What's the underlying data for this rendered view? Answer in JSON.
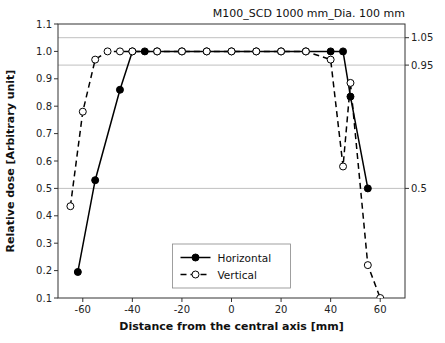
{
  "chart_data": {
    "type": "line",
    "title": "M100_SCD 1000 mm_Dia. 100 mm",
    "xlabel": "Distance from the central axis [mm]",
    "ylabel": "Relative dose [Arbitrary unit]",
    "xlim": [
      -70,
      70
    ],
    "ylim": [
      0.1,
      1.1
    ],
    "xticks": [
      -60,
      -40,
      -20,
      0,
      20,
      40,
      60
    ],
    "yticks": [
      0.1,
      0.2,
      0.3,
      0.4,
      0.5,
      0.6,
      0.7,
      0.8,
      0.9,
      {
        "value": 1.0,
        "label": "1.0"
      },
      1.1
    ],
    "y2lim": [
      0.1,
      1.1
    ],
    "y2ticks": [
      0.5,
      0.95,
      1.05
    ],
    "grid": true,
    "legend": "lower center",
    "series": [
      {
        "name": "Horizontal",
        "color": "#000000",
        "marker": "filled-circle",
        "line_style": "solid",
        "x": [
          -62,
          -55,
          -45,
          -40,
          -35,
          -30,
          -20,
          -10,
          0,
          10,
          20,
          30,
          40,
          45,
          48,
          55
        ],
        "values": [
          0.195,
          0.53,
          0.86,
          1.0,
          1.0,
          1.0,
          1.0,
          1.0,
          1.0,
          1.0,
          1.0,
          1.0,
          1.0,
          1.0,
          0.835,
          0.5
        ]
      },
      {
        "name": "Vertical",
        "color": "#000000",
        "marker": "open-circle",
        "line_style": "dashed",
        "x": [
          -65,
          -60,
          -55,
          -50,
          -45,
          -40,
          -30,
          -20,
          -10,
          0,
          10,
          20,
          30,
          40,
          45,
          48,
          55,
          60
        ],
        "values": [
          0.435,
          0.78,
          0.97,
          1.0,
          1.0,
          1.0,
          1.0,
          1.0,
          1.0,
          1.0,
          1.0,
          1.0,
          1.0,
          0.97,
          0.58,
          0.885,
          0.22,
          0.1
        ]
      }
    ]
  }
}
